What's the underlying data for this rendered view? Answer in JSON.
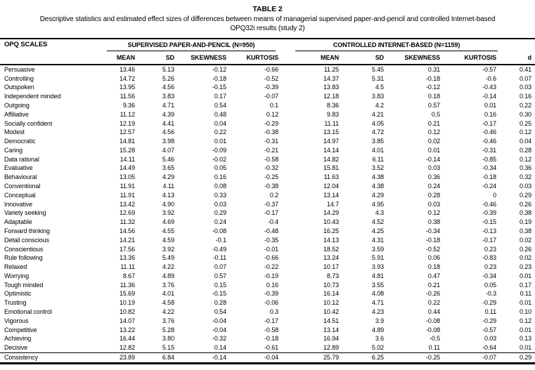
{
  "title": {
    "label": "TABLE 2",
    "subtitle_lines": [
      "Descriptive statistics and estimated effect sizes of differences between means of managerial supervised paper-and-pencil and controlled Internet-based",
      "OPQ32i results (study 2)"
    ]
  },
  "table": {
    "scales_header": "OPQ SCALES",
    "group1_header": "SUPERVISED PAPER-AND-PENCIL (N=950)",
    "group2_header": "CONTROLLED INTERNET-BASED (N=1159)",
    "subheaders": [
      "MEAN",
      "SD",
      "SKEWNESS",
      "KURTOSIS"
    ],
    "d_header": "d",
    "rows": [
      {
        "scale": "Persuasive",
        "p": [
          "13.46",
          "5.13",
          "-0.12",
          "-0.66"
        ],
        "i": [
          "11.25",
          "5.45",
          "0.31",
          "-0.57"
        ],
        "d": "0.41"
      },
      {
        "scale": "Controlling",
        "p": [
          "14.72",
          "5.26",
          "-0.18",
          "-0.52"
        ],
        "i": [
          "14.37",
          "5.31",
          "-0.18",
          "-0.6"
        ],
        "d": "0.07"
      },
      {
        "scale": "Outspoken",
        "p": [
          "13.95",
          "4.56",
          "-0.15",
          "-0.39"
        ],
        "i": [
          "13.83",
          "4.5",
          "-0.12",
          "-0.43"
        ],
        "d": "0.03"
      },
      {
        "scale": "Independent minded",
        "p": [
          "11.56",
          "3.83",
          "0.17",
          "-0.07"
        ],
        "i": [
          "12.18",
          "3.83",
          "0.18",
          "-0.14"
        ],
        "d": "0.16"
      },
      {
        "scale": "Outgoing",
        "p": [
          "9.36",
          "4.71",
          "0.54",
          "0.1"
        ],
        "i": [
          "8.36",
          "4.2",
          "0.57",
          "0.01"
        ],
        "d": "0.22"
      },
      {
        "scale": "Affiliative",
        "p": [
          "11.12",
          "4.39",
          "0.48",
          "0.12"
        ],
        "i": [
          "9.83",
          "4.21",
          "0.5",
          "0.16"
        ],
        "d": "0.30"
      },
      {
        "scale": "Socially confident",
        "p": [
          "12.19",
          "4.41",
          "0.04",
          "-0.29"
        ],
        "i": [
          "11.11",
          "4.05",
          "0.21",
          "-0.17"
        ],
        "d": "0.25"
      },
      {
        "scale": "Modest",
        "p": [
          "12.57",
          "4.56",
          "0.22",
          "-0.38"
        ],
        "i": [
          "13.15",
          "4.72",
          "0.12",
          "-0.46"
        ],
        "d": "0.12"
      },
      {
        "scale": "Democratic",
        "p": [
          "14.81",
          "3.98",
          "0.01",
          "-0.31"
        ],
        "i": [
          "14.97",
          "3.85",
          "0.02",
          "-0.46"
        ],
        "d": "0.04"
      },
      {
        "scale": "Caring",
        "p": [
          "15.28",
          "4.07",
          "-0.09",
          "-0.21"
        ],
        "i": [
          "14.14",
          "4.01",
          "0.01",
          "-0.31"
        ],
        "d": "0.28"
      },
      {
        "scale": "Data rational",
        "p": [
          "14.11",
          "5.46",
          "-0.02",
          "-0.58"
        ],
        "i": [
          "14.82",
          "6.11",
          "-0.14",
          "-0.85"
        ],
        "d": "0.12"
      },
      {
        "scale": "Evaluative",
        "p": [
          "14.49",
          "3.65",
          "0.05",
          "-0.32"
        ],
        "i": [
          "15.81",
          "3.52",
          "0.03",
          "-0.34"
        ],
        "d": "0.36"
      },
      {
        "scale": "Behavioural",
        "p": [
          "13.05",
          "4.29",
          "0.16",
          "-0.25"
        ],
        "i": [
          "11.63",
          "4.38",
          "0.36",
          "-0.18"
        ],
        "d": "0.32"
      },
      {
        "scale": "Conventional",
        "p": [
          "11.91",
          "4.11",
          "0.08",
          "-0.38"
        ],
        "i": [
          "12.04",
          "4.38",
          "0.24",
          "-0.24"
        ],
        "d": "0.03"
      },
      {
        "scale": "Conceptual",
        "p": [
          "11.91",
          "4.13",
          "0.33",
          "0.2"
        ],
        "i": [
          "13.14",
          "4.29",
          "0.28",
          "0"
        ],
        "d": "0.29"
      },
      {
        "scale": "Innovative",
        "p": [
          "13.42",
          "4.90",
          "0.03",
          "-0.37"
        ],
        "i": [
          "14.7",
          "4.95",
          "0.03",
          "-0.46"
        ],
        "d": "0.26"
      },
      {
        "scale": "Variety seeking",
        "p": [
          "12.69",
          "3.92",
          "0.29",
          "-0.17"
        ],
        "i": [
          "14.29",
          "4.3",
          "0.12",
          "-0.39"
        ],
        "d": "0.38"
      },
      {
        "scale": "Adaptable",
        "p": [
          "11.32",
          "4.69",
          "0.24",
          "-0.4"
        ],
        "i": [
          "10.43",
          "4.52",
          "0.38",
          "-0.15"
        ],
        "d": "0.19"
      },
      {
        "scale": "Forward thinking",
        "p": [
          "14.56",
          "4.55",
          "-0.08",
          "-0.48"
        ],
        "i": [
          "16.25",
          "4.25",
          "-0.34",
          "-0.13"
        ],
        "d": "0.38"
      },
      {
        "scale": "Detail conscious",
        "p": [
          "14.21",
          "4.59",
          "-0.1",
          "-0.35"
        ],
        "i": [
          "14.13",
          "4.31",
          "-0.18",
          "-0.17"
        ],
        "d": "0.02"
      },
      {
        "scale": "Conscientious",
        "p": [
          "17.56",
          "3.92",
          "-0.49",
          "-0.01"
        ],
        "i": [
          "18.52",
          "3.59",
          "-0.52",
          "0.23"
        ],
        "d": "0.26"
      },
      {
        "scale": "Rule following",
        "p": [
          "13.36",
          "5.49",
          "-0.11",
          "-0.66"
        ],
        "i": [
          "13.24",
          "5.91",
          "0.06",
          "-0.83"
        ],
        "d": "0.02"
      },
      {
        "scale": "Relaxed",
        "p": [
          "11.11",
          "4.22",
          "0.07",
          "-0.22"
        ],
        "i": [
          "10.17",
          "3.93",
          "0.18",
          "0.23"
        ],
        "d": "0.23"
      },
      {
        "scale": "Worrying",
        "p": [
          "8.67",
          "4.89",
          "0.57",
          "-0.19"
        ],
        "i": [
          "8.73",
          "4.81",
          "0.47",
          "-0.34"
        ],
        "d": "0.01"
      },
      {
        "scale": "Tough minded",
        "p": [
          "11.36",
          "3.76",
          "0.15",
          "0.16"
        ],
        "i": [
          "10.73",
          "3.55",
          "0.21",
          "0.05"
        ],
        "d": "0.17"
      },
      {
        "scale": "Optimistic",
        "p": [
          "15.69",
          "4.01",
          "-0.15",
          "-0.39"
        ],
        "i": [
          "16.14",
          "4.08",
          "-0.26",
          "-0.3"
        ],
        "d": "0.11"
      },
      {
        "scale": "Trusting",
        "p": [
          "10.19",
          "4.58",
          "0.28",
          "-0.06"
        ],
        "i": [
          "10.12",
          "4.71",
          "0.22",
          "-0.29"
        ],
        "d": "0.01"
      },
      {
        "scale": "Emotional control",
        "p": [
          "10.82",
          "4.22",
          "0.54",
          "0.3"
        ],
        "i": [
          "10.42",
          "4.23",
          "0.44",
          "0.11"
        ],
        "d": "0.10"
      },
      {
        "scale": "Vigorous",
        "p": [
          "14.07",
          "3.76",
          "-0.04",
          "-0.17"
        ],
        "i": [
          "14.51",
          "3.9",
          "-0.08",
          "-0.29"
        ],
        "d": "0.12"
      },
      {
        "scale": "Competitive",
        "p": [
          "13.22",
          "5.28",
          "-0.04",
          "-0.58"
        ],
        "i": [
          "13.14",
          "4.89",
          "-0.08",
          "-0.57"
        ],
        "d": "0.01"
      },
      {
        "scale": "Achieving",
        "p": [
          "16.44",
          "3.80",
          "-0.32",
          "-0.18"
        ],
        "i": [
          "16.94",
          "3.6",
          "-0.5",
          "0.03"
        ],
        "d": "0.13"
      },
      {
        "scale": "Decisive",
        "p": [
          "12.82",
          "5.15",
          "0.14",
          "-0.61"
        ],
        "i": [
          "12.89",
          "5.02",
          "0.11",
          "-0.64"
        ],
        "d": "0.01"
      },
      {
        "scale": "Consistency",
        "p": [
          "23.89",
          "6.84",
          "-0.14",
          "-0.04"
        ],
        "i": [
          "25.79",
          "6.25",
          "-0.25",
          "-0.07"
        ],
        "d": "0.29"
      }
    ]
  }
}
